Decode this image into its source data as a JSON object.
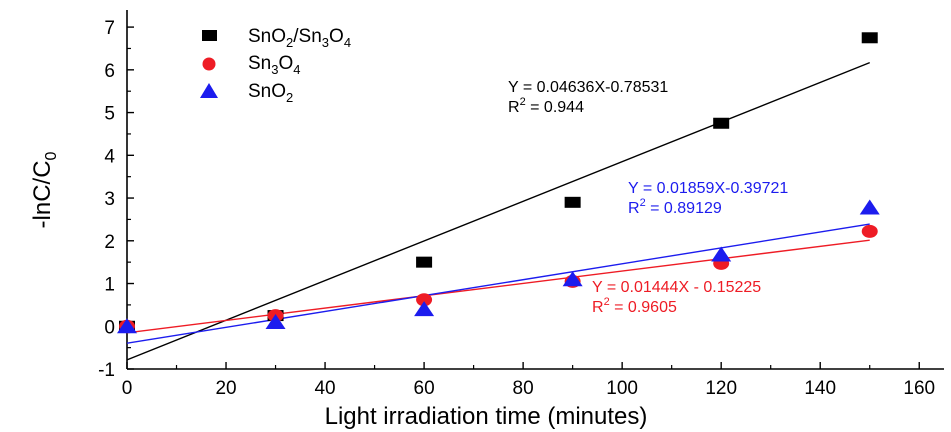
{
  "chart_data": {
    "type": "scatter",
    "xlabel": "Light irradiation time (minutes)",
    "ylabel": "-lnC/C",
    "ylabel_sub": "0",
    "xlim": [
      0,
      165
    ],
    "ylim": [
      -1,
      7.4
    ],
    "x_ticks": [
      "0",
      "20",
      "40",
      "60",
      "80",
      "100",
      "120",
      "140",
      "160"
    ],
    "y_ticks": [
      "-1",
      "0",
      "1",
      "2",
      "3",
      "4",
      "5",
      "6",
      "7"
    ],
    "grid": false,
    "legend_position": "top-left",
    "series": [
      {
        "legend": {
          "a": "SnO",
          "a_sub": "2",
          "b": "/Sn",
          "b_sub": "3",
          "c": "O",
          "c_sub": "4"
        },
        "marker": "square",
        "color": "#000000",
        "x": [
          0,
          30,
          60,
          90,
          120,
          150
        ],
        "y": [
          0,
          0.25,
          1.5,
          2.9,
          4.75,
          6.75
        ],
        "fit": {
          "slope": 0.04636,
          "intercept": -0.78531,
          "x_range": [
            0,
            150
          ]
        },
        "annotation": {
          "line1": "Y = 0.04636X-0.78531",
          "line2_pre": "R",
          "line2_sup": "2",
          "line2_post": " = 0.944"
        }
      },
      {
        "legend": {
          "a": "Sn",
          "a_sub": "3",
          "b": "O",
          "b_sub": "4"
        },
        "marker": "circle",
        "color": "#ee1c25",
        "x": [
          0,
          30,
          60,
          90,
          120,
          150
        ],
        "y": [
          0,
          0.25,
          0.62,
          1.05,
          1.47,
          2.22
        ],
        "fit": {
          "slope": 0.01444,
          "intercept": -0.15225,
          "x_range": [
            0,
            150
          ]
        },
        "annotation": {
          "line1": "Y = 0.01444X - 0.15225",
          "line2_pre": "R",
          "line2_sup": "2",
          "line2_post": " = 0.9605"
        }
      },
      {
        "legend": {
          "a": "SnO",
          "a_sub": "2"
        },
        "marker": "triangle",
        "color": "#1c1cee",
        "x": [
          0,
          30,
          60,
          90,
          120,
          150
        ],
        "y": [
          0,
          0.1,
          0.4,
          1.1,
          1.68,
          2.78
        ],
        "fit": {
          "slope": 0.01859,
          "intercept": -0.39721,
          "x_range": [
            0,
            150
          ]
        },
        "annotation": {
          "line1": "Y = 0.01859X-0.39721",
          "line2_pre": "R",
          "line2_sup": "2",
          "line2_post": " = 0.89129"
        }
      }
    ]
  }
}
